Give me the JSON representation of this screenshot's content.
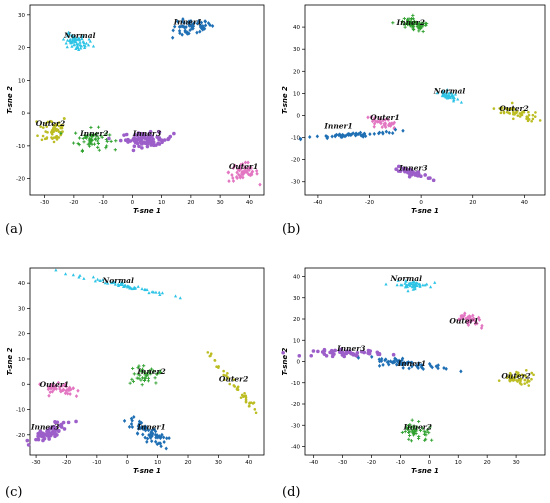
{
  "colors": {
    "Normal": "#2ec4e6",
    "Inner1": "#1f6fb4",
    "Inner2": "#2ca02c",
    "Inner3": "#9c5ec8",
    "Outer1": "#e377c2",
    "Outer2": "#bcbd22"
  },
  "chart_data": [
    {
      "type": "scatter",
      "panel_label": "(a)",
      "xlabel": "T-sne 1",
      "ylabel": "T-sne 2",
      "xlim": [
        -35,
        45
      ],
      "ylim": [
        -25,
        33
      ],
      "xticks": [
        -30,
        -20,
        -10,
        0,
        10,
        20,
        30,
        40
      ],
      "yticks": [
        -20,
        -10,
        0,
        10,
        20,
        30
      ],
      "clusters": [
        {
          "name": "Normal",
          "label": "Normal",
          "center": [
            -19,
            22
          ],
          "spread": [
            1.2,
            4.5
          ],
          "angle": 78,
          "count": 60,
          "label_pos": [
            -18,
            23
          ]
        },
        {
          "name": "Inner1",
          "label": "Inner1",
          "center": [
            20,
            26
          ],
          "spread": [
            3.5,
            2.5
          ],
          "angle": 10,
          "count": 55,
          "label_pos": [
            19,
            27
          ]
        },
        {
          "name": "Outer2",
          "label": "Outer2",
          "center": [
            -27,
            -5
          ],
          "spread": [
            2.5,
            4.5
          ],
          "angle": 0,
          "count": 55,
          "label_pos": [
            -28,
            -4
          ]
        },
        {
          "name": "Inner2",
          "label": "Inner2",
          "center": [
            -14,
            -8
          ],
          "spread": [
            3.0,
            3.2
          ],
          "angle": 0,
          "count": 60,
          "label_pos": [
            -13,
            -7
          ]
        },
        {
          "name": "Inner3",
          "label": "Inner3",
          "center": [
            5,
            -8
          ],
          "spread": [
            4.5,
            2.0
          ],
          "angle": 0,
          "count": 80,
          "label_pos": [
            5,
            -7
          ]
        },
        {
          "name": "Outer1",
          "label": "Outer1",
          "center": [
            38,
            -18
          ],
          "spread": [
            2.5,
            3.0
          ],
          "angle": 0,
          "count": 55,
          "label_pos": [
            38,
            -17
          ]
        }
      ]
    },
    {
      "type": "scatter",
      "panel_label": "(b)",
      "xlabel": "T-sne 1",
      "ylabel": "T-sne 2",
      "xlim": [
        -45,
        48
      ],
      "ylim": [
        -36,
        50
      ],
      "xticks": [
        -40,
        -20,
        0,
        20,
        40
      ],
      "yticks": [
        -30,
        -20,
        -10,
        0,
        10,
        20,
        30,
        40
      ],
      "clusters": [
        {
          "name": "Inner2",
          "label": "Inner2",
          "center": [
            -3,
            41
          ],
          "spread": [
            3.0,
            2.5
          ],
          "angle": -15,
          "count": 60,
          "label_pos": [
            -4,
            41
          ]
        },
        {
          "name": "Normal",
          "label": "Normal",
          "center": [
            11,
            9
          ],
          "spread": [
            1.0,
            4.0
          ],
          "angle": 80,
          "count": 40,
          "label_pos": [
            11,
            10
          ]
        },
        {
          "name": "Outer1",
          "label": "Outer1",
          "center": [
            -15,
            -3
          ],
          "spread": [
            1.0,
            5.0
          ],
          "angle": 75,
          "count": 40,
          "label_pos": [
            -14,
            -2
          ]
        },
        {
          "name": "Outer2",
          "label": "Outer2",
          "center": [
            37,
            1
          ],
          "spread": [
            1.2,
            8.0
          ],
          "angle": 70,
          "count": 55,
          "label_pos": [
            36,
            2
          ]
        },
        {
          "name": "Inner1",
          "label": "Inner1",
          "center": [
            -28,
            -9
          ],
          "spread": [
            9.0,
            1.0
          ],
          "angle": 5,
          "count": 55,
          "label_pos": [
            -32,
            -6
          ]
        },
        {
          "name": "Inner3",
          "label": "Inner3",
          "center": [
            -3,
            -26
          ],
          "spread": [
            4.0,
            1.5
          ],
          "angle": -20,
          "count": 45,
          "label_pos": [
            -3,
            -25
          ]
        }
      ]
    },
    {
      "type": "scatter",
      "panel_label": "(c)",
      "xlabel": "T-sne 1",
      "ylabel": "T-sne 2",
      "xlim": [
        -32,
        45
      ],
      "ylim": [
        -28,
        46
      ],
      "xticks": [
        -30,
        -20,
        -10,
        0,
        10,
        20,
        30,
        40
      ],
      "yticks": [
        -20,
        -10,
        0,
        10,
        20,
        30,
        40
      ],
      "clusters": [
        {
          "name": "Normal",
          "label": "Normal",
          "center": [
            -1,
            39
          ],
          "spread": [
            8.0,
            0.9
          ],
          "angle": -15,
          "count": 55,
          "label_pos": [
            -3,
            40
          ]
        },
        {
          "name": "Outer1",
          "label": "Outer1",
          "center": [
            -22,
            -2
          ],
          "spread": [
            1.2,
            6.0
          ],
          "angle": 80,
          "count": 45,
          "label_pos": [
            -24,
            -1
          ]
        },
        {
          "name": "Inner2",
          "label": "Inner2",
          "center": [
            6,
            3
          ],
          "spread": [
            1.8,
            5.0
          ],
          "angle": 85,
          "count": 40,
          "label_pos": [
            8,
            4
          ]
        },
        {
          "name": "Outer2",
          "label": "Outer2",
          "center": [
            35,
            0
          ],
          "spread": [
            7.0,
            1.3
          ],
          "angle": -55,
          "count": 45,
          "label_pos": [
            35,
            1
          ]
        },
        {
          "name": "Inner3",
          "label": "Inner3",
          "center": [
            -25,
            -19
          ],
          "spread": [
            4.0,
            2.5
          ],
          "angle": 35,
          "count": 65,
          "label_pos": [
            -27,
            -18
          ]
        },
        {
          "name": "Inner1",
          "label": "Inner1",
          "center": [
            7,
            -19
          ],
          "spread": [
            4.0,
            2.5
          ],
          "angle": -40,
          "count": 60,
          "label_pos": [
            8,
            -18
          ]
        }
      ]
    },
    {
      "type": "scatter",
      "panel_label": "(d)",
      "xlabel": "T-sne 1",
      "ylabel": "T-sne 2",
      "xlim": [
        -43,
        40
      ],
      "ylim": [
        -44,
        44
      ],
      "xticks": [
        -40,
        -30,
        -20,
        -10,
        0,
        10,
        20,
        30
      ],
      "yticks": [
        -40,
        -30,
        -20,
        -10,
        0,
        10,
        20,
        30,
        40
      ],
      "clusters": [
        {
          "name": "Normal",
          "label": "Normal",
          "center": [
            -6,
            36
          ],
          "spread": [
            3.0,
            1.8
          ],
          "angle": 0,
          "count": 50,
          "label_pos": [
            -8,
            38
          ]
        },
        {
          "name": "Outer1",
          "label": "Outer1",
          "center": [
            14,
            20
          ],
          "spread": [
            1.2,
            4.0
          ],
          "angle": 60,
          "count": 40,
          "label_pos": [
            12,
            18
          ]
        },
        {
          "name": "Inner3",
          "label": "Inner3",
          "center": [
            -28,
            4
          ],
          "spread": [
            6.0,
            1.5
          ],
          "angle": 0,
          "count": 55,
          "label_pos": [
            -27,
            5
          ]
        },
        {
          "name": "Inner1",
          "label": "Inner1",
          "center": [
            -8,
            -1
          ],
          "spread": [
            7.0,
            1.8
          ],
          "angle": -10,
          "count": 60,
          "label_pos": [
            -6,
            -2
          ]
        },
        {
          "name": "Outer2",
          "label": "Outer2",
          "center": [
            31,
            -8
          ],
          "spread": [
            1.5,
            6.0
          ],
          "angle": 85,
          "count": 45,
          "label_pos": [
            30,
            -8
          ]
        },
        {
          "name": "Inner2",
          "label": "Inner2",
          "center": [
            -5,
            -33
          ],
          "spread": [
            3.0,
            3.5
          ],
          "angle": -30,
          "count": 45,
          "label_pos": [
            -4,
            -32
          ]
        }
      ]
    }
  ]
}
